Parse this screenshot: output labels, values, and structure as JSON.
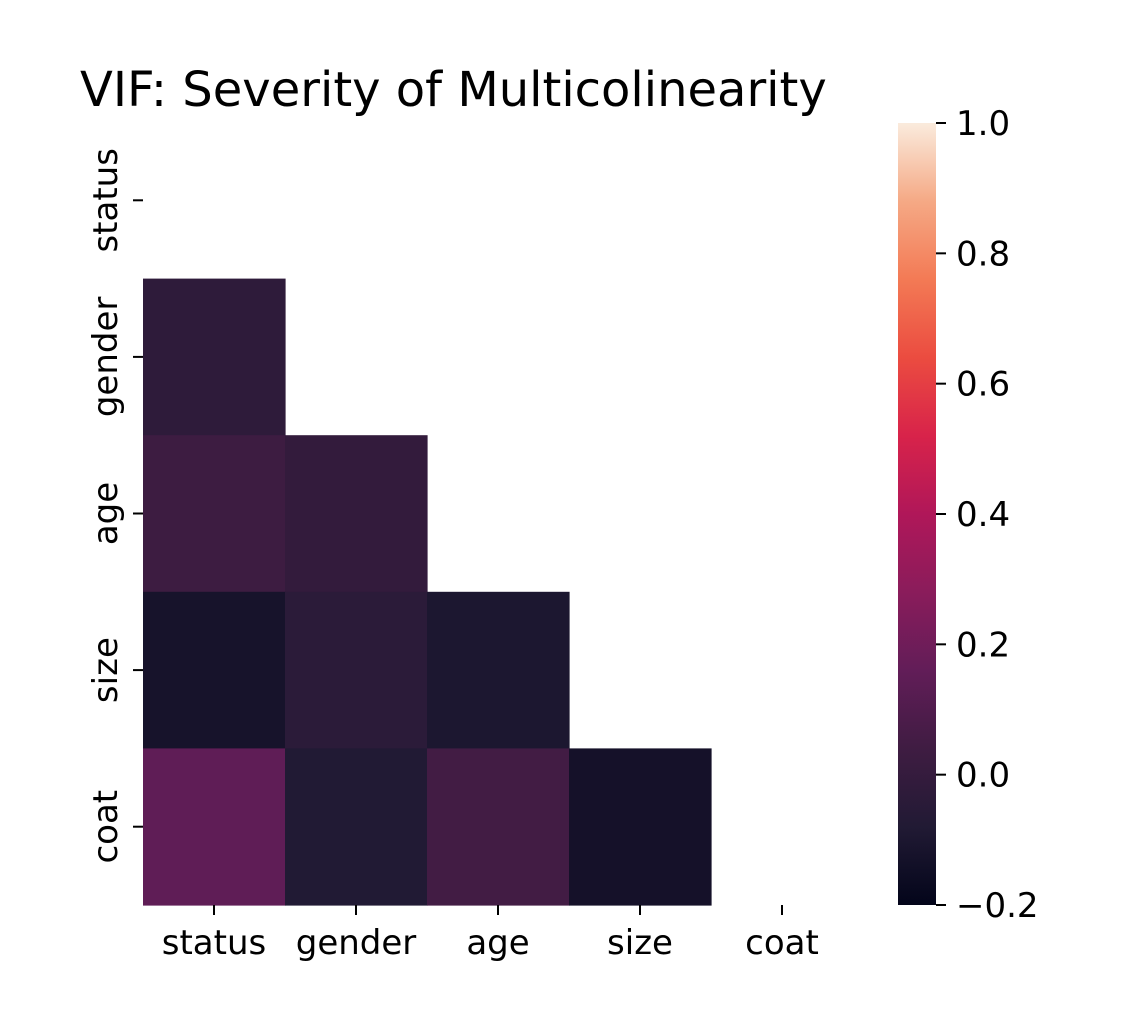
{
  "chart_data": {
    "type": "heatmap",
    "title": "VIF: Severity of Multicolinearity",
    "xlabel": "",
    "ylabel": "",
    "x_categories": [
      "status",
      "gender",
      "age",
      "size",
      "coat"
    ],
    "y_categories": [
      "status",
      "gender",
      "age",
      "size",
      "coat"
    ],
    "mask": "upper triangle including diagonal (cells with column index >= row index are blank)",
    "values": [
      [
        null,
        null,
        null,
        null,
        null
      ],
      [
        -0.03,
        null,
        null,
        null,
        null
      ],
      [
        0.03,
        -0.01,
        null,
        null,
        null
      ],
      [
        -0.12,
        -0.04,
        -0.1,
        null,
        null
      ],
      [
        0.15,
        -0.08,
        0.05,
        -0.13,
        null
      ]
    ],
    "colorbar": {
      "cmap": "rocket",
      "vmin": -0.2,
      "vmax": 1.0,
      "ticks": [
        "−0.2",
        "0.0",
        "0.2",
        "0.4",
        "0.6",
        "0.8",
        "1.0"
      ],
      "tick_values": [
        -0.2,
        0.0,
        0.2,
        0.4,
        0.6,
        0.8,
        1.0
      ]
    },
    "grid": false
  }
}
